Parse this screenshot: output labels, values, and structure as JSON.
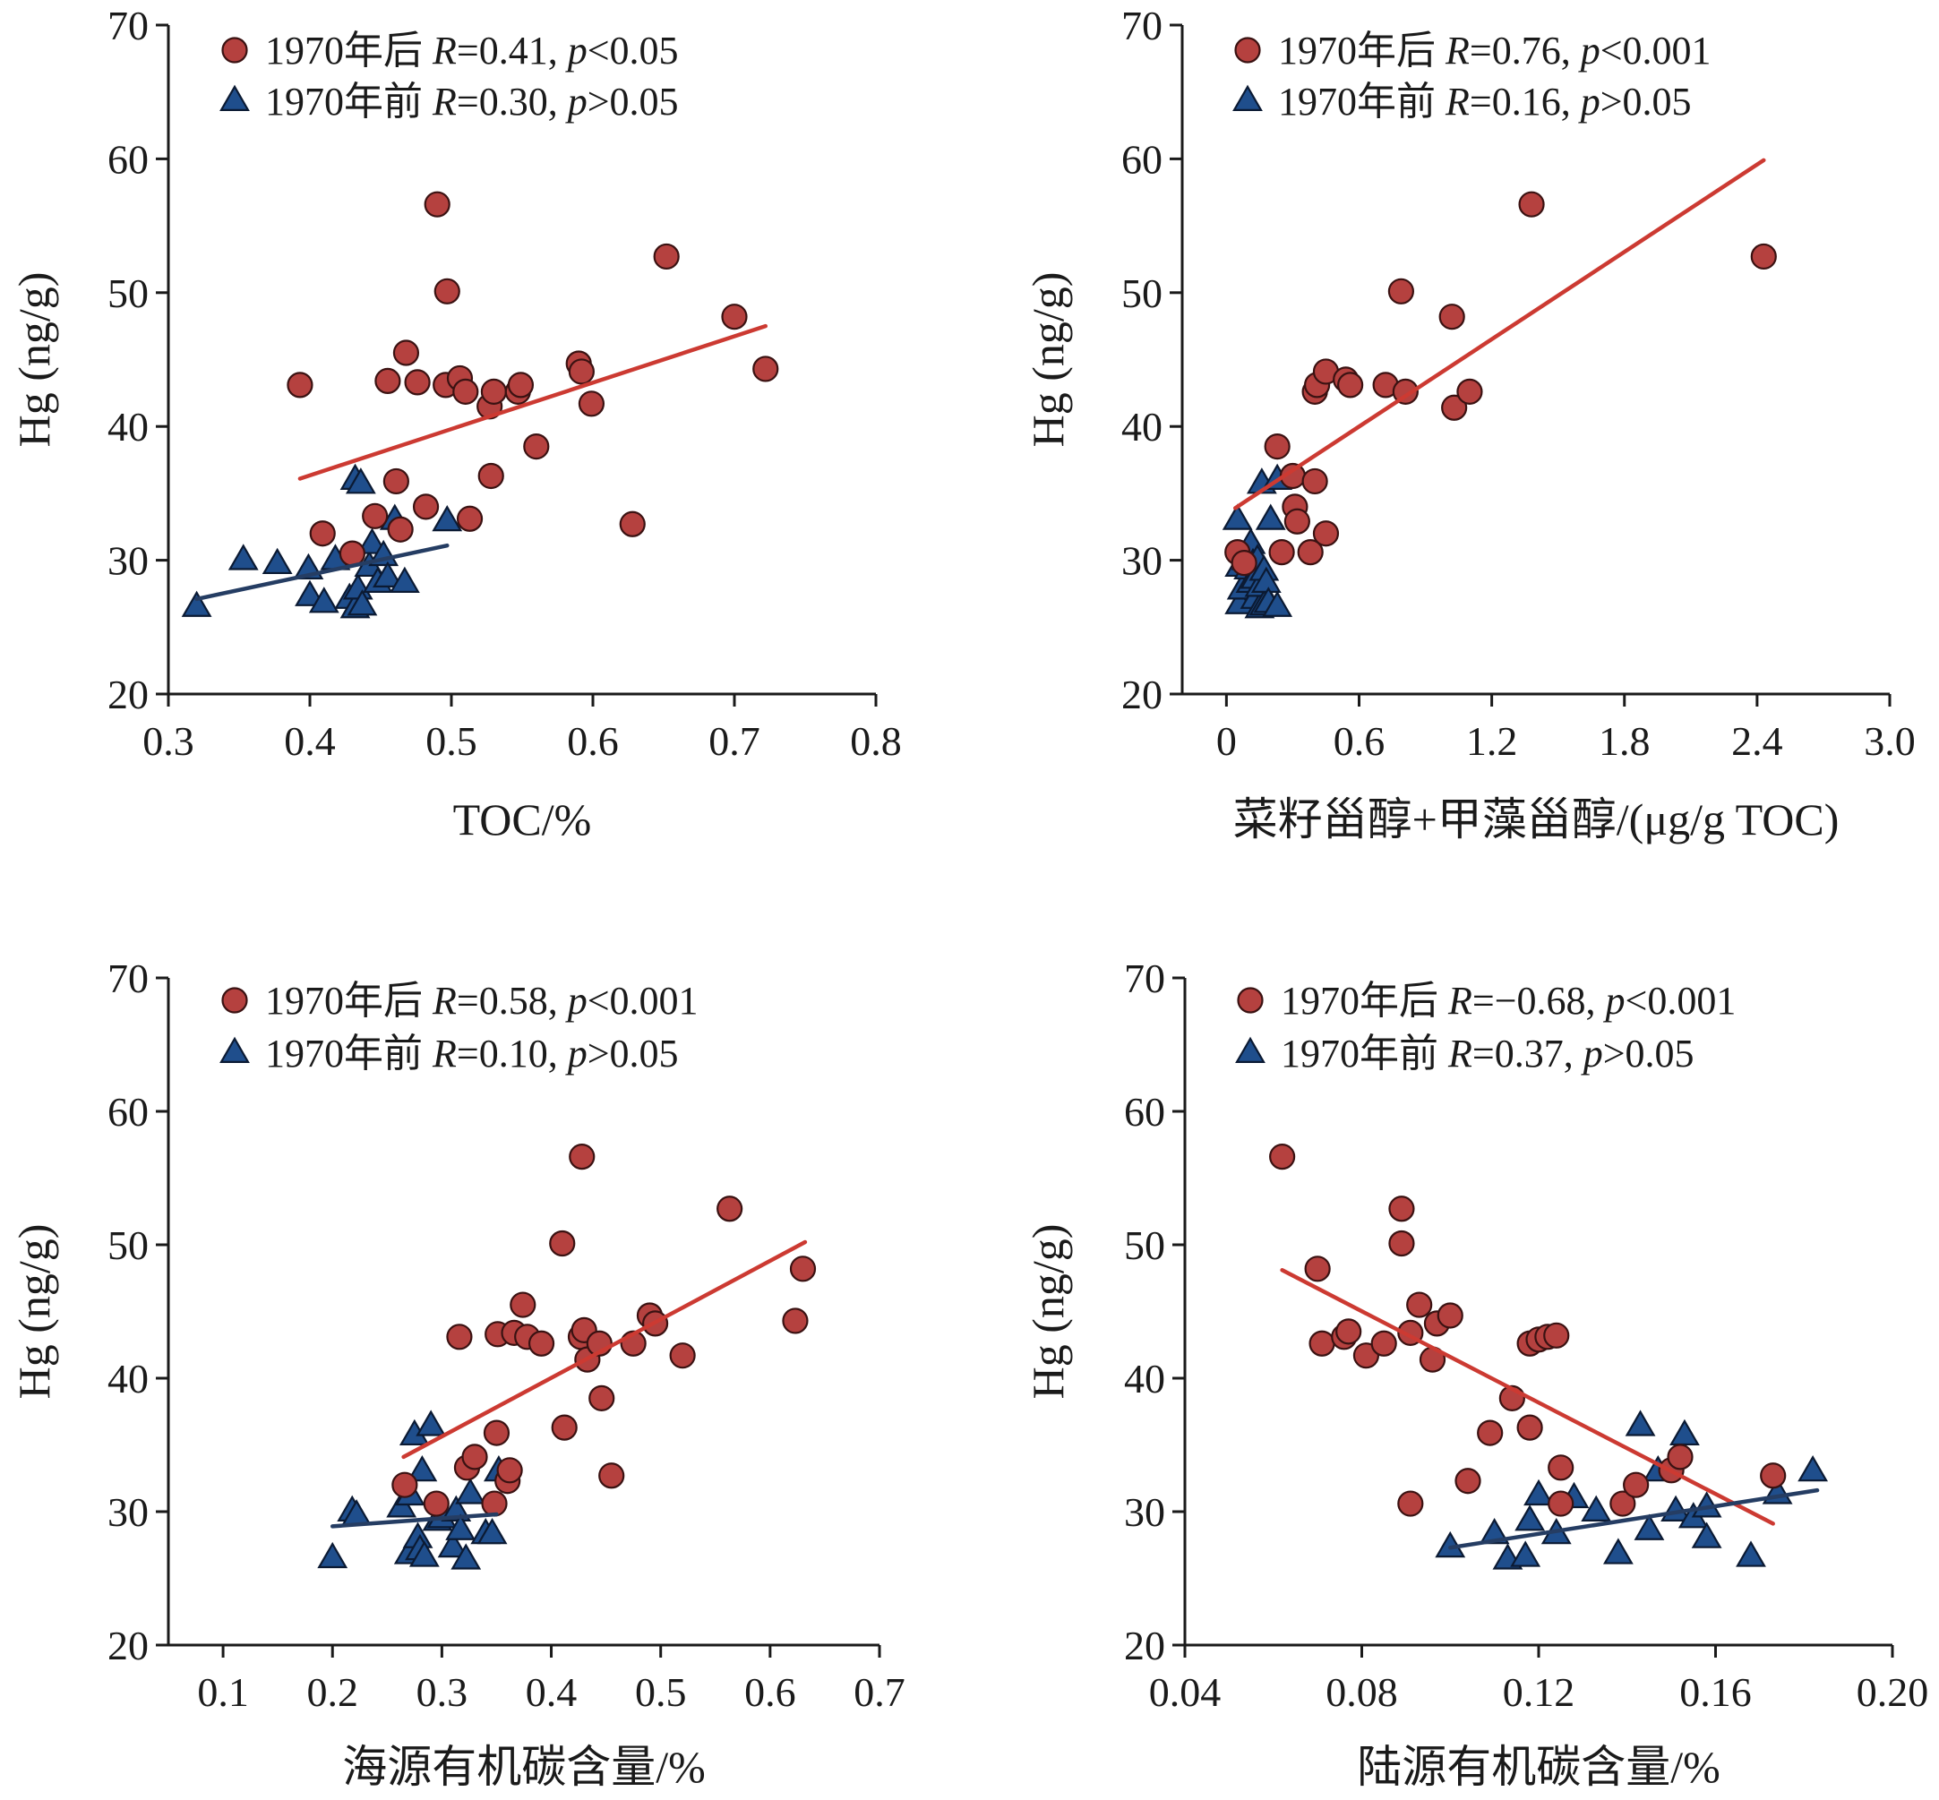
{
  "figure": {
    "post_color": "#b5413f",
    "post_edge": "#3a1212",
    "pre_color": "#1f4e8c",
    "pre_edge": "#0b1a33",
    "post_fit_color": "#cc3a32",
    "pre_fit_color": "#253d63"
  },
  "chart_data": [
    {
      "type": "scatter",
      "xlabel": "TOC/%",
      "ylabel": "Hg (ng/g)",
      "xlim": [
        0.3,
        0.8
      ],
      "ylim": [
        20,
        70
      ],
      "xticks": [
        "0.3",
        "0.4",
        "0.5",
        "0.6",
        "0.7",
        "0.8"
      ],
      "yticks": [
        "20",
        "30",
        "40",
        "50",
        "60",
        "70"
      ],
      "legend_position": "top-left",
      "series": [
        {
          "name": "1970年后",
          "marker": "circle",
          "legend_stats": {
            "r_text": "=0.41, ",
            "p_text": "<0.05"
          },
          "fit": [
            [
              0.393,
              36.1
            ],
            [
              0.722,
              47.5
            ]
          ],
          "points": [
            [
              0.393,
              43.1
            ],
            [
              0.409,
              32.0
            ],
            [
              0.43,
              30.5
            ],
            [
              0.446,
              33.3
            ],
            [
              0.455,
              43.4
            ],
            [
              0.461,
              35.9
            ],
            [
              0.464,
              32.3
            ],
            [
              0.468,
              45.5
            ],
            [
              0.476,
              43.3
            ],
            [
              0.482,
              34.0
            ],
            [
              0.49,
              56.6
            ],
            [
              0.496,
              43.1
            ],
            [
              0.497,
              50.1
            ],
            [
              0.506,
              43.6
            ],
            [
              0.51,
              42.6
            ],
            [
              0.513,
              33.1
            ],
            [
              0.527,
              41.5
            ],
            [
              0.528,
              36.3
            ],
            [
              0.53,
              42.6
            ],
            [
              0.547,
              42.6
            ],
            [
              0.549,
              43.1
            ],
            [
              0.56,
              38.5
            ],
            [
              0.59,
              44.7
            ],
            [
              0.592,
              44.1
            ],
            [
              0.599,
              41.7
            ],
            [
              0.628,
              32.7
            ],
            [
              0.652,
              52.7
            ],
            [
              0.7,
              48.2
            ],
            [
              0.722,
              44.3
            ]
          ]
        },
        {
          "name": "1970年前",
          "marker": "triangle",
          "legend_stats": {
            "r_text": "=0.30, ",
            "p_text": ">0.05"
          },
          "fit": [
            [
              0.32,
              27.1
            ],
            [
              0.497,
              31.1
            ]
          ],
          "points": [
            [
              0.32,
              26.5
            ],
            [
              0.353,
              30.0
            ],
            [
              0.377,
              29.7
            ],
            [
              0.399,
              29.3
            ],
            [
              0.4,
              27.3
            ],
            [
              0.41,
              26.8
            ],
            [
              0.418,
              30.0
            ],
            [
              0.428,
              27.1
            ],
            [
              0.432,
              36.0
            ],
            [
              0.432,
              26.4
            ],
            [
              0.434,
              27.8
            ],
            [
              0.436,
              35.7
            ],
            [
              0.437,
              26.6
            ],
            [
              0.442,
              29.5
            ],
            [
              0.444,
              31.2
            ],
            [
              0.448,
              28.3
            ],
            [
              0.452,
              30.3
            ],
            [
              0.455,
              28.7
            ],
            [
              0.46,
              33.0
            ],
            [
              0.467,
              28.3
            ],
            [
              0.497,
              32.9
            ]
          ]
        }
      ]
    },
    {
      "type": "scatter",
      "xlabel": "菜籽甾醇+甲藻甾醇/(μg/g TOC)",
      "ylabel": "Hg (ng/g)",
      "xlim": [
        -0.2,
        3.0
      ],
      "ylim": [
        20,
        70
      ],
      "xticks": [
        "0",
        "0.6",
        "1.2",
        "1.8",
        "2.4",
        "3.0"
      ],
      "xtick_values": [
        0,
        0.6,
        1.2,
        1.8,
        2.4,
        3.0
      ],
      "yticks": [
        "20",
        "30",
        "40",
        "50",
        "60",
        "70"
      ],
      "legend_position": "top-left",
      "series": [
        {
          "name": "1970年后",
          "marker": "circle",
          "legend_stats": {
            "r_text": "=0.76, ",
            "p_text": "<0.001"
          },
          "fit": [
            [
              0.04,
              33.9
            ],
            [
              2.43,
              59.9
            ]
          ],
          "points": [
            [
              0.05,
              30.6
            ],
            [
              0.08,
              29.8
            ],
            [
              0.23,
              38.5
            ],
            [
              0.25,
              30.6
            ],
            [
              0.3,
              36.3
            ],
            [
              0.31,
              34.0
            ],
            [
              0.32,
              32.9
            ],
            [
              0.38,
              30.6
            ],
            [
              0.4,
              35.9
            ],
            [
              0.4,
              42.6
            ],
            [
              0.41,
              43.1
            ],
            [
              0.45,
              32.0
            ],
            [
              0.45,
              44.1
            ],
            [
              0.54,
              43.5
            ],
            [
              0.56,
              43.1
            ],
            [
              0.72,
              43.1
            ],
            [
              0.79,
              50.1
            ],
            [
              0.81,
              42.6
            ],
            [
              1.02,
              48.2
            ],
            [
              1.03,
              41.4
            ],
            [
              1.1,
              42.6
            ],
            [
              1.38,
              56.6
            ],
            [
              2.43,
              52.7
            ]
          ]
        },
        {
          "name": "1970年前",
          "marker": "triangle",
          "legend_stats": {
            "r_text": "=0.16, ",
            "p_text": ">0.05"
          },
          "fit": [],
          "points": [
            [
              0.05,
              33.0
            ],
            [
              0.06,
              29.5
            ],
            [
              0.06,
              26.7
            ],
            [
              0.07,
              27.8
            ],
            [
              0.09,
              30.0
            ],
            [
              0.1,
              29.3
            ],
            [
              0.11,
              31.2
            ],
            [
              0.11,
              28.3
            ],
            [
              0.12,
              29.7
            ],
            [
              0.13,
              28.6
            ],
            [
              0.13,
              27.1
            ],
            [
              0.14,
              30.0
            ],
            [
              0.15,
              26.4
            ],
            [
              0.15,
              28.0
            ],
            [
              0.16,
              35.7
            ],
            [
              0.17,
              29.2
            ],
            [
              0.17,
              26.6
            ],
            [
              0.18,
              28.3
            ],
            [
              0.19,
              26.8
            ],
            [
              0.2,
              33.0
            ],
            [
              0.23,
              36.0
            ],
            [
              0.23,
              26.5
            ]
          ]
        }
      ]
    },
    {
      "type": "scatter",
      "xlabel": "海源有机碳含量/%",
      "ylabel": "Hg (ng/g)",
      "xlim": [
        0.05,
        0.7
      ],
      "ylim": [
        20,
        70
      ],
      "xticks": [
        "0.1",
        "0.2",
        "0.3",
        "0.4",
        "0.5",
        "0.6",
        "0.7"
      ],
      "xtick_values": [
        0.1,
        0.2,
        0.3,
        0.4,
        0.5,
        0.6,
        0.7
      ],
      "yticks": [
        "20",
        "30",
        "40",
        "50",
        "60",
        "70"
      ],
      "legend_position": "top-left",
      "series": [
        {
          "name": "1970年后",
          "marker": "circle",
          "legend_stats": {
            "r_text": "=0.58, ",
            "p_text": "<0.001"
          },
          "fit": [
            [
              0.265,
              34.1
            ],
            [
              0.632,
              50.2
            ]
          ],
          "points": [
            [
              0.266,
              32.0
            ],
            [
              0.295,
              30.6
            ],
            [
              0.316,
              43.1
            ],
            [
              0.323,
              33.3
            ],
            [
              0.33,
              34.1
            ],
            [
              0.348,
              30.6
            ],
            [
              0.35,
              35.9
            ],
            [
              0.351,
              43.3
            ],
            [
              0.36,
              32.3
            ],
            [
              0.362,
              33.1
            ],
            [
              0.366,
              43.4
            ],
            [
              0.374,
              45.5
            ],
            [
              0.378,
              43.1
            ],
            [
              0.391,
              42.6
            ],
            [
              0.41,
              50.1
            ],
            [
              0.412,
              36.3
            ],
            [
              0.427,
              43.1
            ],
            [
              0.428,
              56.6
            ],
            [
              0.43,
              43.6
            ],
            [
              0.433,
              41.4
            ],
            [
              0.444,
              42.6
            ],
            [
              0.446,
              38.5
            ],
            [
              0.455,
              32.7
            ],
            [
              0.475,
              42.6
            ],
            [
              0.49,
              44.7
            ],
            [
              0.495,
              44.1
            ],
            [
              0.52,
              41.7
            ],
            [
              0.563,
              52.7
            ],
            [
              0.623,
              44.3
            ],
            [
              0.63,
              48.2
            ]
          ]
        },
        {
          "name": "1970年前",
          "marker": "triangle",
          "legend_stats": {
            "r_text": "=0.10, ",
            "p_text": ">0.05"
          },
          "fit": [
            [
              0.2,
              28.9
            ],
            [
              0.35,
              29.8
            ]
          ],
          "points": [
            [
              0.2,
              26.5
            ],
            [
              0.218,
              30.0
            ],
            [
              0.222,
              29.7
            ],
            [
              0.263,
              30.3
            ],
            [
              0.27,
              26.8
            ],
            [
              0.271,
              31.2
            ],
            [
              0.275,
              35.7
            ],
            [
              0.278,
              28.0
            ],
            [
              0.28,
              27.1
            ],
            [
              0.282,
              33.0
            ],
            [
              0.284,
              26.6
            ],
            [
              0.29,
              36.4
            ],
            [
              0.296,
              29.3
            ],
            [
              0.3,
              29.5
            ],
            [
              0.31,
              27.3
            ],
            [
              0.313,
              30.0
            ],
            [
              0.317,
              28.6
            ],
            [
              0.322,
              26.4
            ],
            [
              0.326,
              31.3
            ],
            [
              0.34,
              28.3
            ],
            [
              0.346,
              28.3
            ],
            [
              0.352,
              33.0
            ]
          ]
        }
      ]
    },
    {
      "type": "scatter",
      "xlabel": "陆源有机碳含量/%",
      "ylabel": "Hg (ng/g)",
      "xlim": [
        0.04,
        0.2
      ],
      "ylim": [
        20,
        70
      ],
      "xticks": [
        "0.04",
        "0.08",
        "0.12",
        "0.16",
        "0.20"
      ],
      "xtick_values": [
        0.04,
        0.08,
        0.12,
        0.16,
        0.2
      ],
      "yticks": [
        "20",
        "30",
        "40",
        "50",
        "60",
        "70"
      ],
      "legend_position": "top-left",
      "series": [
        {
          "name": "1970年后",
          "marker": "circle",
          "legend_stats": {
            "r_text": "=−0.68, ",
            "p_text": "<0.001"
          },
          "fit": [
            [
              0.062,
              48.1
            ],
            [
              0.173,
              29.1
            ]
          ],
          "points": [
            [
              0.062,
              56.6
            ],
            [
              0.07,
              48.2
            ],
            [
              0.071,
              42.6
            ],
            [
              0.076,
              43.1
            ],
            [
              0.077,
              43.5
            ],
            [
              0.081,
              41.7
            ],
            [
              0.085,
              42.6
            ],
            [
              0.089,
              52.7
            ],
            [
              0.089,
              50.1
            ],
            [
              0.091,
              30.6
            ],
            [
              0.091,
              43.4
            ],
            [
              0.093,
              45.5
            ],
            [
              0.096,
              41.4
            ],
            [
              0.097,
              44.1
            ],
            [
              0.1,
              44.7
            ],
            [
              0.104,
              32.3
            ],
            [
              0.109,
              35.9
            ],
            [
              0.114,
              38.5
            ],
            [
              0.118,
              42.6
            ],
            [
              0.118,
              36.3
            ],
            [
              0.12,
              42.9
            ],
            [
              0.122,
              43.1
            ],
            [
              0.124,
              43.2
            ],
            [
              0.125,
              33.3
            ],
            [
              0.125,
              30.6
            ],
            [
              0.139,
              30.6
            ],
            [
              0.142,
              32.0
            ],
            [
              0.15,
              33.1
            ],
            [
              0.152,
              34.1
            ],
            [
              0.173,
              32.7
            ]
          ]
        },
        {
          "name": "1970年前",
          "marker": "triangle",
          "legend_stats": {
            "r_text": "=0.37, ",
            "p_text": ">0.05"
          },
          "fit": [
            [
              0.1,
              27.3
            ],
            [
              0.183,
              31.6
            ]
          ],
          "points": [
            [
              0.1,
              27.3
            ],
            [
              0.11,
              28.3
            ],
            [
              0.113,
              26.4
            ],
            [
              0.117,
              26.6
            ],
            [
              0.118,
              29.3
            ],
            [
              0.12,
              31.2
            ],
            [
              0.124,
              28.3
            ],
            [
              0.128,
              31.0
            ],
            [
              0.133,
              30.0
            ],
            [
              0.138,
              26.8
            ],
            [
              0.143,
              36.4
            ],
            [
              0.145,
              28.6
            ],
            [
              0.147,
              33.0
            ],
            [
              0.151,
              30.0
            ],
            [
              0.153,
              35.7
            ],
            [
              0.155,
              29.5
            ],
            [
              0.158,
              28.0
            ],
            [
              0.158,
              30.3
            ],
            [
              0.168,
              26.6
            ],
            [
              0.174,
              31.3
            ],
            [
              0.182,
              33.0
            ]
          ]
        }
      ]
    }
  ]
}
